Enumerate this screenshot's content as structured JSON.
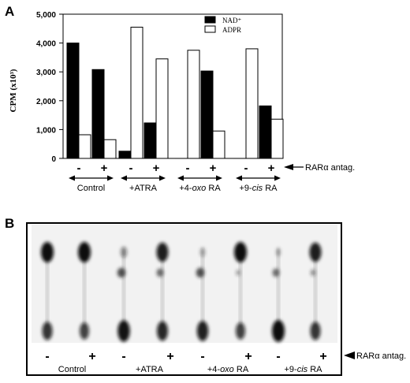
{
  "panel_a": {
    "label": "A",
    "antagonist_label": "RARα antag.",
    "tick_labels": [
      "0",
      "1,000",
      "2,000",
      "3,000",
      "4,000",
      "5,000"
    ],
    "ylabel": "CPM (x10³)",
    "legend": [
      {
        "name": "NAD⁺",
        "color": "#000000"
      },
      {
        "name": "ADPR",
        "color": "#ffffff"
      }
    ],
    "groups": [
      "Control",
      "+ATRA",
      "+4-oxo RA",
      "+9-cis RA"
    ],
    "signs": [
      "-",
      "+"
    ]
  },
  "panel_b": {
    "label": "B",
    "antagonist_label": "RARα antag.",
    "groups": [
      "Control",
      "+ATRA",
      "+4-oxo RA",
      "+9-cis RA"
    ],
    "signs": [
      "-",
      "+"
    ]
  },
  "chart_data": {
    "type": "bar",
    "categories": [
      "Control -",
      "Control +",
      "+ATRA -",
      "+ATRA +",
      "+4-oxo RA -",
      "+4-oxo RA +",
      "+9-cis RA -",
      "+9-cis RA +"
    ],
    "series": [
      {
        "name": "NAD⁺",
        "color": "#000000",
        "values": [
          4000,
          3080,
          250,
          1230,
          0,
          3030,
          0,
          1820
        ]
      },
      {
        "name": "ADPR",
        "color": "#ffffff",
        "values": [
          820,
          650,
          4550,
          3450,
          3750,
          950,
          3800,
          1360
        ]
      }
    ],
    "ylabel": "CPM (x10³)",
    "ylim": [
      0,
      5000
    ],
    "yticks": [
      0,
      1000,
      2000,
      3000,
      4000,
      5000
    ],
    "legend_position": "top-right",
    "grid": false
  },
  "tlc": {
    "lanes": [
      "-",
      "+",
      "-",
      "+",
      "-",
      "+",
      "-",
      "+"
    ],
    "upper_spot_rel": [
      1.0,
      1.0,
      0.25,
      0.9,
      0.1,
      1.0,
      0.05,
      0.9
    ],
    "middle_spot_rel": [
      0.0,
      0.0,
      0.8,
      0.6,
      0.8,
      0.2,
      0.6,
      0.3
    ],
    "origin_spot_rel": [
      0.7,
      0.6,
      0.95,
      0.8,
      0.85,
      0.6,
      1.0,
      0.7
    ]
  }
}
